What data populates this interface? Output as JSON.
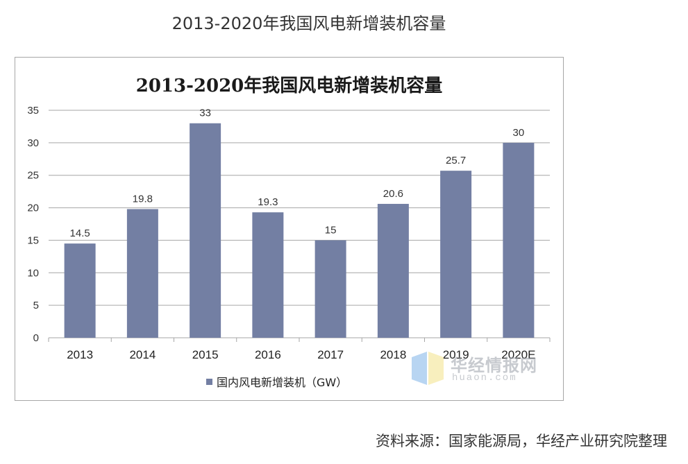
{
  "page_title": "2013-2020年我国风电新增装机容量",
  "source_note": "资料来源：国家能源局，华经产业研究院整理",
  "watermark": {
    "text": "华经情报网",
    "sub": "huaon.com"
  },
  "chart_data": {
    "type": "bar",
    "title": "2013-2020年我国风电新增装机容量",
    "categories": [
      "2013",
      "2014",
      "2015",
      "2016",
      "2017",
      "2018",
      "2019",
      "2020E"
    ],
    "series": [
      {
        "name": "国内风电新增装机（GW）",
        "values": [
          14.5,
          19.8,
          33,
          19.3,
          15,
          20.6,
          25.7,
          30
        ],
        "color": "#737fa3"
      }
    ],
    "data_labels": [
      "14.5",
      "19.8",
      "33",
      "19.3",
      "15",
      "20.6",
      "25.7",
      "30"
    ],
    "ylim": [
      0,
      35
    ],
    "yticks": [
      0,
      5,
      10,
      15,
      20,
      25,
      30,
      35
    ],
    "grid": true,
    "legend_position": "bottom",
    "grid_color": "#a6a6a6"
  }
}
